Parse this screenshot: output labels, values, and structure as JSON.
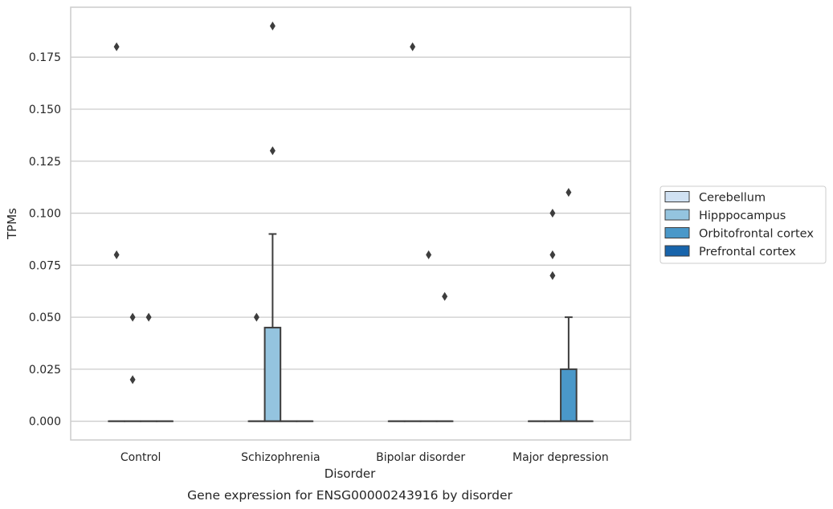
{
  "chart_data": {
    "type": "box",
    "caption": "Gene expression for ENSG00000243916 by disorder",
    "xlabel": "Disorder",
    "ylabel": "TPMs",
    "categories": [
      "Control",
      "Schizophrenia",
      "Bipolar disorder",
      "Major depression"
    ],
    "ylim": [
      -0.009,
      0.199
    ],
    "yticks": [
      0.0,
      0.025,
      0.05,
      0.075,
      0.1,
      0.125,
      0.15,
      0.175
    ],
    "ytick_labels": [
      "0.000",
      "0.025",
      "0.050",
      "0.075",
      "0.100",
      "0.125",
      "0.150",
      "0.175"
    ],
    "grid": true,
    "legend_position": "right",
    "series": [
      {
        "name": "Cerebellum",
        "color": "#d0e1f2",
        "boxes": [
          {
            "category": "Control",
            "q1": 0,
            "median": 0,
            "q3": 0,
            "whisker_low": 0,
            "whisker_high": 0,
            "outliers": [
              0.18,
              0.08
            ]
          },
          {
            "category": "Schizophrenia",
            "q1": 0,
            "median": 0,
            "q3": 0,
            "whisker_low": 0,
            "whisker_high": 0,
            "outliers": [
              0.05
            ]
          },
          {
            "category": "Bipolar disorder",
            "q1": 0,
            "median": 0,
            "q3": 0,
            "whisker_low": 0,
            "whisker_high": 0,
            "outliers": []
          },
          {
            "category": "Major depression",
            "q1": 0,
            "median": 0,
            "q3": 0,
            "whisker_low": 0,
            "whisker_high": 0,
            "outliers": []
          }
        ]
      },
      {
        "name": "Hipppocampus",
        "color": "#94c4df",
        "boxes": [
          {
            "category": "Control",
            "q1": 0,
            "median": 0,
            "q3": 0,
            "whisker_low": 0,
            "whisker_high": 0,
            "outliers": [
              0.05,
              0.02
            ]
          },
          {
            "category": "Schizophrenia",
            "q1": 0,
            "median": 0,
            "q3": 0.045,
            "whisker_low": 0,
            "whisker_high": 0.09,
            "outliers": [
              0.19,
              0.13
            ]
          },
          {
            "category": "Bipolar disorder",
            "q1": 0,
            "median": 0,
            "q3": 0,
            "whisker_low": 0,
            "whisker_high": 0,
            "outliers": [
              0.18
            ]
          },
          {
            "category": "Major depression",
            "q1": 0,
            "median": 0,
            "q3": 0,
            "whisker_low": 0,
            "whisker_high": 0,
            "outliers": [
              0.1,
              0.08,
              0.07
            ]
          }
        ]
      },
      {
        "name": "Orbitofrontal cortex",
        "color": "#4a98c9",
        "boxes": [
          {
            "category": "Control",
            "q1": 0,
            "median": 0,
            "q3": 0,
            "whisker_low": 0,
            "whisker_high": 0,
            "outliers": [
              0.05
            ]
          },
          {
            "category": "Schizophrenia",
            "q1": 0,
            "median": 0,
            "q3": 0,
            "whisker_low": 0,
            "whisker_high": 0,
            "outliers": []
          },
          {
            "category": "Bipolar disorder",
            "q1": 0,
            "median": 0,
            "q3": 0,
            "whisker_low": 0,
            "whisker_high": 0,
            "outliers": [
              0.08
            ]
          },
          {
            "category": "Major depression",
            "q1": 0,
            "median": 0,
            "q3": 0.025,
            "whisker_low": 0,
            "whisker_high": 0.05,
            "outliers": [
              0.11
            ]
          }
        ]
      },
      {
        "name": "Prefrontal cortex",
        "color": "#1764ab",
        "boxes": [
          {
            "category": "Control",
            "q1": 0,
            "median": 0,
            "q3": 0,
            "whisker_low": 0,
            "whisker_high": 0,
            "outliers": []
          },
          {
            "category": "Schizophrenia",
            "q1": 0,
            "median": 0,
            "q3": 0,
            "whisker_low": 0,
            "whisker_high": 0,
            "outliers": []
          },
          {
            "category": "Bipolar disorder",
            "q1": 0,
            "median": 0,
            "q3": 0,
            "whisker_low": 0,
            "whisker_high": 0,
            "outliers": [
              0.06
            ]
          },
          {
            "category": "Major depression",
            "q1": 0,
            "median": 0,
            "q3": 0,
            "whisker_low": 0,
            "whisker_high": 0,
            "outliers": []
          }
        ]
      }
    ]
  }
}
